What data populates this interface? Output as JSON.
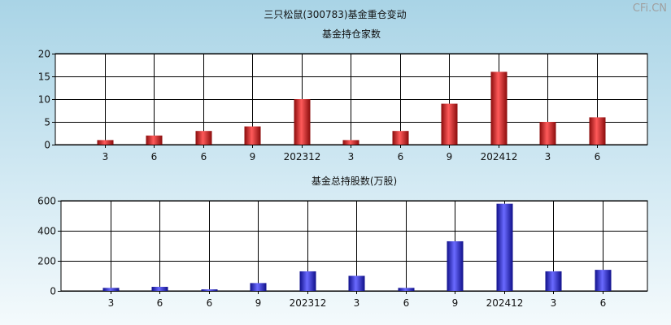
{
  "header": {
    "title": "三只松鼠(300783)基金重仓变动",
    "watermark": "CFi.CN"
  },
  "colors": {
    "bar1": "#d42a2a",
    "bar2": "#3a3ad0",
    "grid": "#000000"
  },
  "chart_data": [
    {
      "type": "bar",
      "title": "基金持仓家数",
      "categories": [
        "3",
        "6",
        "6",
        "9",
        "202312",
        "3",
        "6",
        "9",
        "202412",
        "3",
        "6"
      ],
      "values": [
        1,
        2,
        3,
        4,
        10,
        1,
        3,
        9,
        16,
        5,
        6
      ],
      "ylim": [
        0,
        20
      ],
      "yticks": [
        0,
        5,
        10,
        15,
        20
      ],
      "grid": true
    },
    {
      "type": "bar",
      "title": "基金总持股数(万股)",
      "categories": [
        "3",
        "6",
        "6",
        "9",
        "202312",
        "3",
        "6",
        "9",
        "202412",
        "3",
        "6"
      ],
      "values": [
        20,
        27,
        10,
        52,
        130,
        100,
        20,
        330,
        580,
        130,
        140
      ],
      "ylim": [
        0,
        600
      ],
      "yticks": [
        0,
        200,
        400,
        600
      ],
      "grid": true
    }
  ]
}
